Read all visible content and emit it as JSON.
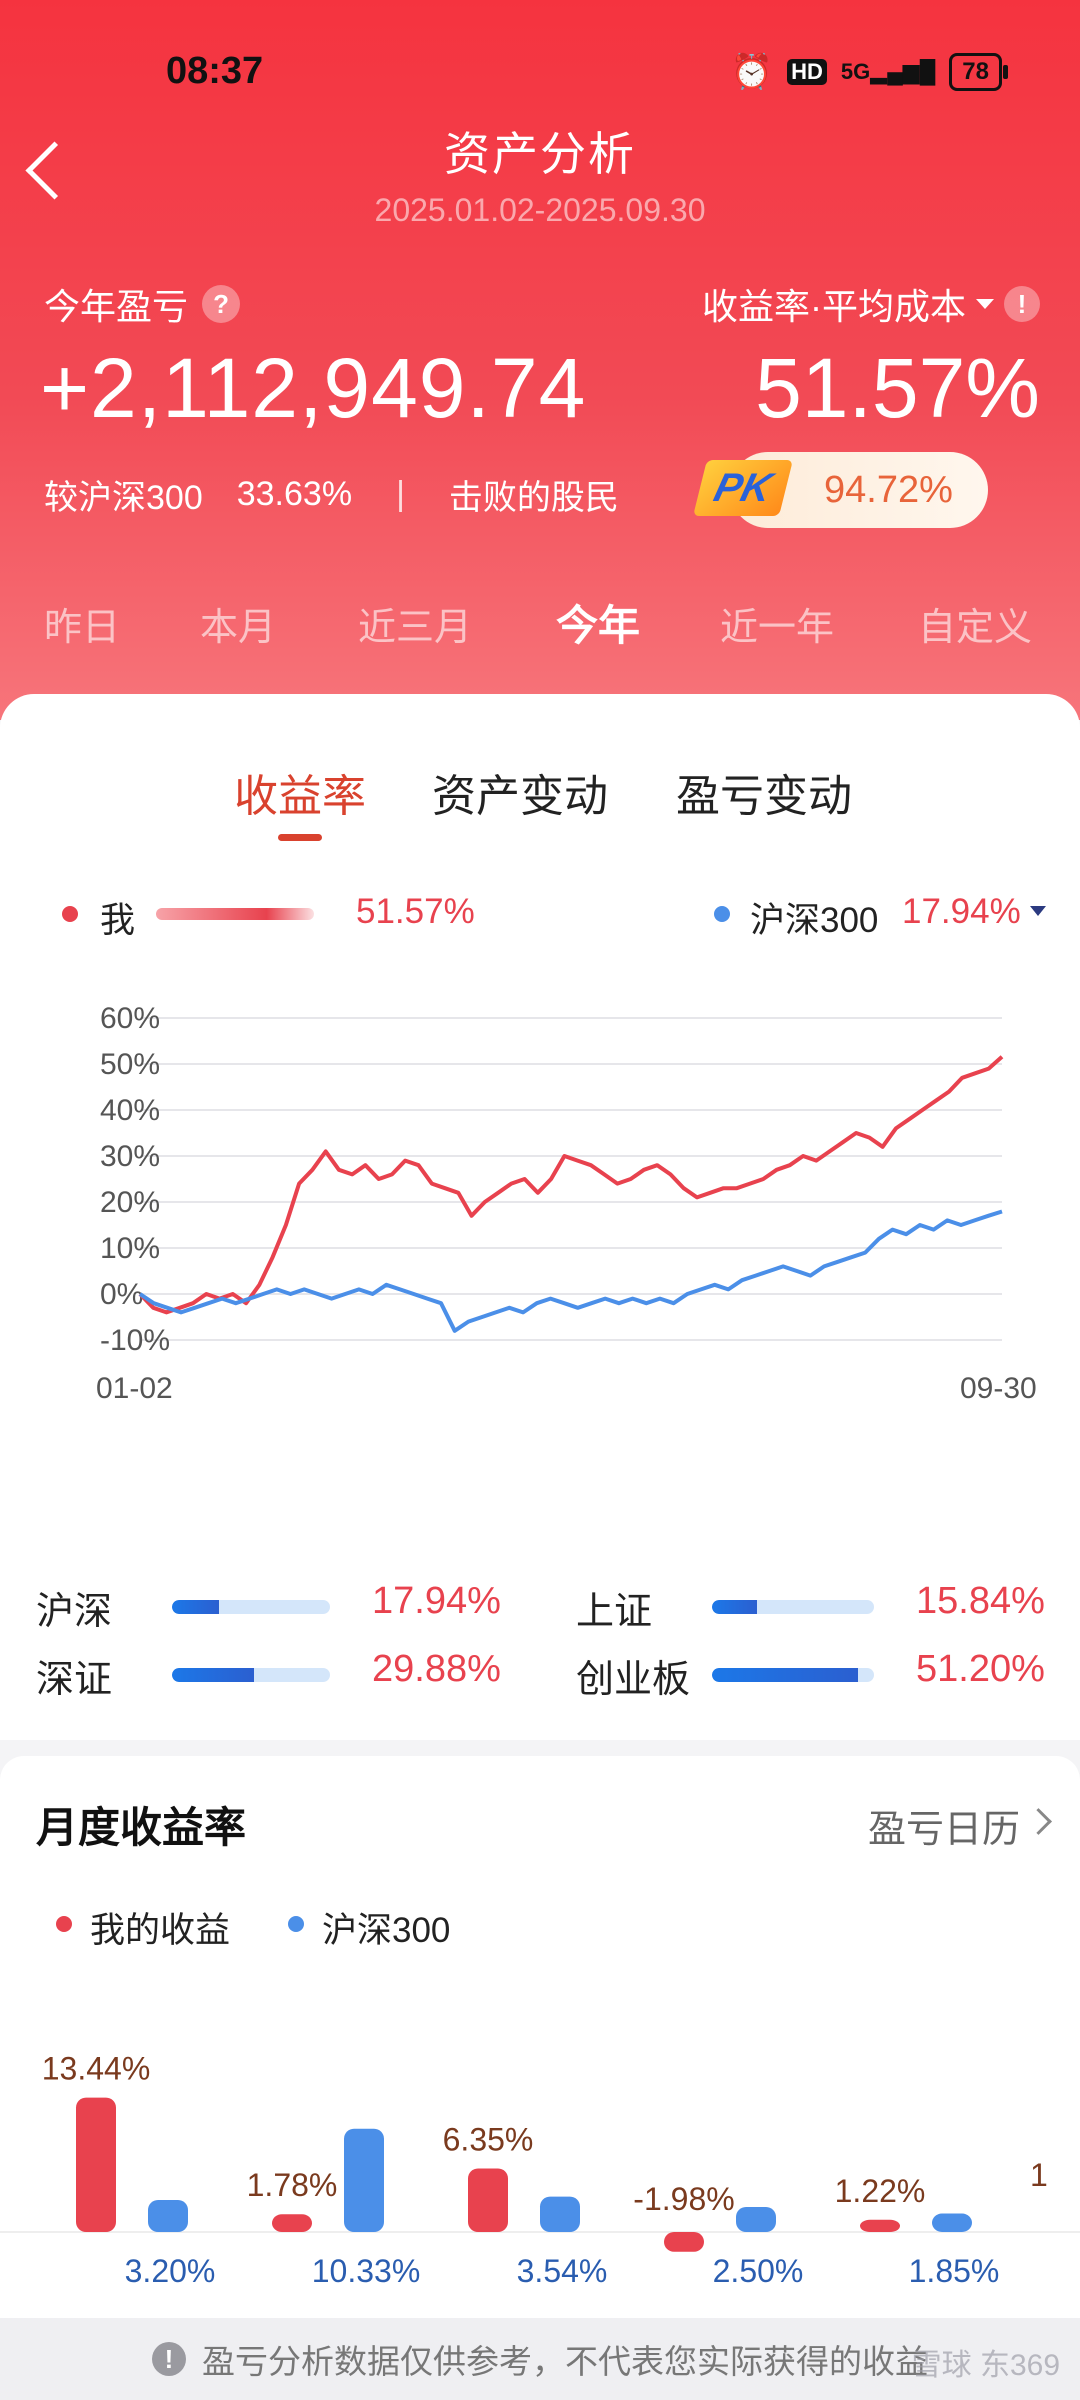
{
  "status": {
    "time": "08:37",
    "hd": "HD",
    "net": "5G",
    "battery": "78"
  },
  "header": {
    "title": "资产分析",
    "range": "2025.01.02-2025.09.30",
    "left_label": "今年盈亏",
    "left_help": "?",
    "right_label": "收益率·平均成本",
    "right_help": "!",
    "profit": "+2,112,949.74",
    "rate": "51.57%",
    "vs_label": "较沪深300",
    "vs_value": "33.63%",
    "sep": "|",
    "beat_label": "击败的股民",
    "pk": "PK",
    "beat_value": "94.72%"
  },
  "period_tabs": [
    "昨日",
    "本月",
    "近三月",
    "今年",
    "近一年",
    "自定义"
  ],
  "chart_tabs": [
    "收益率",
    "资产变动",
    "盈亏变动"
  ],
  "legend": {
    "me": "我",
    "me_value": "51.57%",
    "hs300": "沪深300",
    "hs300_value": "17.94%"
  },
  "colors": {
    "red": "#e8424e",
    "blue": "#4b8fe8",
    "header": "#f5333f",
    "accent": "#d9422e"
  },
  "chart_data": {
    "type": "line",
    "title": "",
    "ylim": [
      -10,
      60
    ],
    "yticks": [
      "60%",
      "50%",
      "40%",
      "30%",
      "20%",
      "10%",
      "0%",
      "-10%"
    ],
    "x_labels": [
      "01-02",
      "09-30"
    ],
    "grid": true,
    "series": [
      {
        "name": "我",
        "values": [
          0,
          -3,
          -4,
          -3,
          -2,
          0,
          -1,
          0,
          -2,
          2,
          8,
          15,
          24,
          27,
          31,
          27,
          26,
          28,
          25,
          26,
          29,
          28,
          24,
          23,
          22,
          17,
          20,
          22,
          24,
          25,
          22,
          25,
          30,
          29,
          28,
          26,
          24,
          25,
          27,
          28,
          26,
          23,
          21,
          22,
          23,
          23,
          24,
          25,
          27,
          28,
          30,
          29,
          31,
          33,
          35,
          34,
          32,
          36,
          38,
          40,
          42,
          44,
          47,
          48,
          49,
          51.57
        ]
      },
      {
        "name": "沪深300",
        "values": [
          0,
          -2,
          -3,
          -4,
          -3,
          -2,
          -1,
          -2,
          -1,
          0,
          1,
          0,
          1,
          0,
          -1,
          0,
          1,
          0,
          2,
          1,
          0,
          -1,
          -2,
          -8,
          -6,
          -5,
          -4,
          -3,
          -4,
          -2,
          -1,
          -2,
          -3,
          -2,
          -1,
          -2,
          -1,
          -2,
          -1,
          -2,
          0,
          1,
          2,
          1,
          3,
          4,
          5,
          6,
          5,
          4,
          6,
          7,
          8,
          9,
          12,
          14,
          13,
          15,
          14,
          16,
          15,
          16,
          17,
          17.94
        ]
      }
    ]
  },
  "indices": [
    {
      "name": "沪深",
      "value": "17.94%",
      "fill": 0.3
    },
    {
      "name": "上证",
      "value": "15.84%",
      "fill": 0.28
    },
    {
      "name": "深证",
      "value": "29.88%",
      "fill": 0.52
    },
    {
      "name": "创业板",
      "value": "51.20%",
      "fill": 0.9
    }
  ],
  "monthly": {
    "title": "月度收益率",
    "calendar_link": "盈亏日历",
    "legend_mine": "我的收益",
    "legend_hs300": "沪深300",
    "chart_data": {
      "type": "bar",
      "series": [
        {
          "name": "我的收益",
          "values": [
            13.44,
            1.78,
            6.35,
            -1.98,
            1.22
          ],
          "labels": [
            "13.44%",
            "1.78%",
            "6.35%",
            "-1.98%",
            "1.22%"
          ]
        },
        {
          "name": "沪深300",
          "values": [
            3.2,
            10.33,
            3.54,
            2.5,
            1.85
          ],
          "labels": [
            "3.20%",
            "10.33%",
            "3.54%",
            "2.50%",
            "1.85%"
          ]
        }
      ],
      "cut_label": "1"
    }
  },
  "footer": {
    "text": "盈亏分析数据仅供参考，不代表您实际获得的收益",
    "watermark": "雪球 东369"
  }
}
